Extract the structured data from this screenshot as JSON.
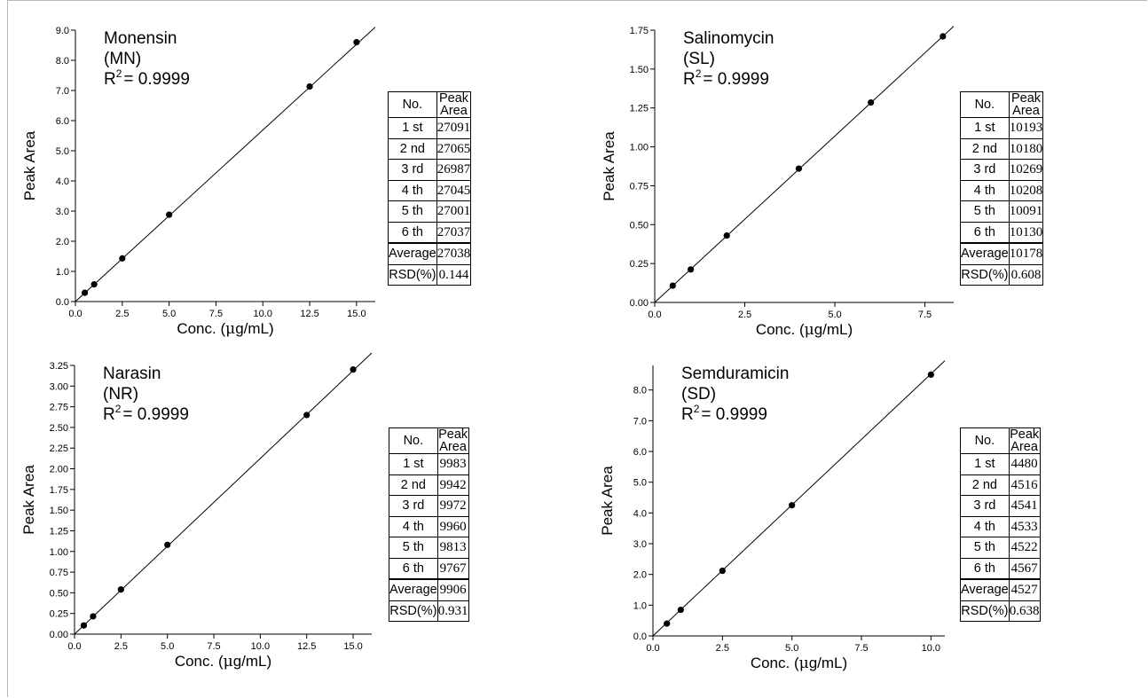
{
  "chart_data": [
    {
      "type": "scatter",
      "annotation": {
        "name": "Monensin",
        "abbr": "(MN)",
        "r2": "= 0.9999"
      },
      "xlabel_pre": "Conc. (",
      "xlabel_mu": "μ",
      "xlabel_post": "g/mL)",
      "ylabel": "Peak Area",
      "xlim": [
        0,
        16
      ],
      "ylim": [
        0,
        9.0
      ],
      "xticks": [
        0,
        2.5,
        5,
        7.5,
        10,
        12.5,
        15
      ],
      "xtick_labels": [
        "0.0",
        "2.5",
        "5.0",
        "7.5",
        "10.0",
        "12.5",
        "15.0"
      ],
      "yticks": [
        0,
        1,
        2,
        3,
        4,
        5,
        6,
        7,
        8,
        9
      ],
      "ytick_labels": [
        "0.0",
        "1.0",
        "2.0",
        "3.0",
        "4.0",
        "5.0",
        "6.0",
        "7.0",
        "8.0",
        "9.0"
      ],
      "x": [
        0.5,
        1.0,
        2.5,
        5.0,
        12.5,
        15.0
      ],
      "y": [
        0.29,
        0.57,
        1.43,
        2.88,
        7.13,
        8.6
      ],
      "fit_line": [
        [
          0,
          0
        ],
        [
          16,
          9.1
        ]
      ],
      "table": {
        "headers": [
          "No.",
          "Peak Area"
        ],
        "rows": [
          [
            "1 st",
            "27091"
          ],
          [
            "2 nd",
            "27065"
          ],
          [
            "3 rd",
            "26987"
          ],
          [
            "4 th",
            "27045"
          ],
          [
            "5 th",
            "27001"
          ],
          [
            "6 th",
            "27037"
          ]
        ],
        "summary": [
          [
            "Average",
            "27038"
          ],
          [
            "RSD(%)",
            "0.144"
          ]
        ]
      }
    },
    {
      "type": "scatter",
      "annotation": {
        "name": "Salinomycin",
        "abbr": "(SL)",
        "r2": "= 0.9999"
      },
      "xlabel_pre": "Conc. (",
      "xlabel_mu": "μ",
      "xlabel_post": "g/mL)",
      "ylabel": "Peak Area",
      "xlim": [
        0,
        8.3
      ],
      "ylim": [
        0,
        1.75
      ],
      "xticks": [
        0,
        2.5,
        5,
        7.5
      ],
      "xtick_labels": [
        "0.0",
        "2.5",
        "5.0",
        "7.5"
      ],
      "yticks": [
        0,
        0.25,
        0.5,
        0.75,
        1.0,
        1.25,
        1.5,
        1.75
      ],
      "ytick_labels": [
        "0.00",
        "0.25",
        "0.50",
        "0.75",
        "1.00",
        "1.25",
        "1.50",
        "1.75"
      ],
      "x": [
        0.5,
        1.0,
        2.0,
        4.0,
        6.0,
        8.0
      ],
      "y": [
        0.108,
        0.212,
        0.43,
        0.86,
        1.285,
        1.71
      ],
      "fit_line": [
        [
          0,
          0
        ],
        [
          8.3,
          1.775
        ]
      ],
      "table": {
        "headers": [
          "No.",
          "Peak Area"
        ],
        "rows": [
          [
            "1 st",
            "10193"
          ],
          [
            "2 nd",
            "10180"
          ],
          [
            "3 rd",
            "10269"
          ],
          [
            "4 th",
            "10208"
          ],
          [
            "5 th",
            "10091"
          ],
          [
            "6 th",
            "10130"
          ]
        ],
        "summary": [
          [
            "Average",
            "10178"
          ],
          [
            "RSD(%)",
            "0.608"
          ]
        ]
      }
    },
    {
      "type": "scatter",
      "annotation": {
        "name": "Narasin",
        "abbr": "(NR)",
        "r2": "= 0.9999"
      },
      "xlabel_pre": "Conc. (",
      "xlabel_mu": "μ",
      "xlabel_post": "g/mL)",
      "ylabel": "Peak Area",
      "xlim": [
        0,
        16
      ],
      "ylim": [
        0,
        3.25
      ],
      "xticks": [
        0,
        2.5,
        5,
        7.5,
        10,
        12.5,
        15
      ],
      "xtick_labels": [
        "0.0",
        "2.5",
        "5.0",
        "7.5",
        "10.0",
        "12.5",
        "15.0"
      ],
      "yticks": [
        0,
        0.25,
        0.5,
        0.75,
        1.0,
        1.25,
        1.5,
        1.75,
        2.0,
        2.25,
        2.5,
        2.75,
        3.0,
        3.25
      ],
      "ytick_labels": [
        "0.00",
        "0.25",
        "0.50",
        "0.75",
        "1.00",
        "1.25",
        "1.50",
        "1.75",
        "2.00",
        "2.25",
        "2.50",
        "2.75",
        "3.00",
        "3.25"
      ],
      "x": [
        0.5,
        1.0,
        2.5,
        5.0,
        12.5,
        15.0
      ],
      "y": [
        0.105,
        0.215,
        0.54,
        1.08,
        2.65,
        3.2
      ],
      "fit_line": [
        [
          0,
          0
        ],
        [
          16,
          3.4
        ]
      ],
      "table": {
        "headers": [
          "No.",
          "Peak Area"
        ],
        "rows": [
          [
            "1 st",
            "9983"
          ],
          [
            "2 nd",
            "9942"
          ],
          [
            "3 rd",
            "9972"
          ],
          [
            "4 th",
            "9960"
          ],
          [
            "5 th",
            "9813"
          ],
          [
            "6 th",
            "9767"
          ]
        ],
        "summary": [
          [
            "Average",
            "9906"
          ],
          [
            "RSD(%)",
            "0.931"
          ]
        ]
      }
    },
    {
      "type": "scatter",
      "annotation": {
        "name": "Semduramicin",
        "abbr": "(SD)",
        "r2": "= 0.9999"
      },
      "xlabel_pre": "Conc. (",
      "xlabel_mu": "μ",
      "xlabel_post": "g/mL)",
      "ylabel": "Peak Area",
      "xlim": [
        0,
        10.5
      ],
      "ylim": [
        0,
        8.8
      ],
      "xticks": [
        0,
        2.5,
        5,
        7.5,
        10
      ],
      "xtick_labels": [
        "0.0",
        "2.5",
        "5.0",
        "7.5",
        "10.0"
      ],
      "yticks": [
        0,
        1,
        2,
        3,
        4,
        5,
        6,
        7,
        8
      ],
      "ytick_labels": [
        "0.0",
        "1.0",
        "2.0",
        "3.0",
        "4.0",
        "5.0",
        "6.0",
        "7.0",
        "8.0"
      ],
      "x": [
        0.5,
        1.0,
        2.5,
        5.0,
        10.0
      ],
      "y": [
        0.4,
        0.85,
        2.12,
        4.25,
        8.5
      ],
      "fit_line": [
        [
          0,
          0
        ],
        [
          10.5,
          8.95
        ]
      ],
      "table": {
        "headers": [
          "No.",
          "Peak Area"
        ],
        "rows": [
          [
            "1 st",
            "4480"
          ],
          [
            "2 nd",
            "4516"
          ],
          [
            "3 rd",
            "4541"
          ],
          [
            "4 th",
            "4533"
          ],
          [
            "5 th",
            "4522"
          ],
          [
            "6 th",
            "4567"
          ]
        ],
        "summary": [
          [
            "Average",
            "4527"
          ],
          [
            "RSD(%)",
            "0.638"
          ]
        ]
      }
    }
  ]
}
